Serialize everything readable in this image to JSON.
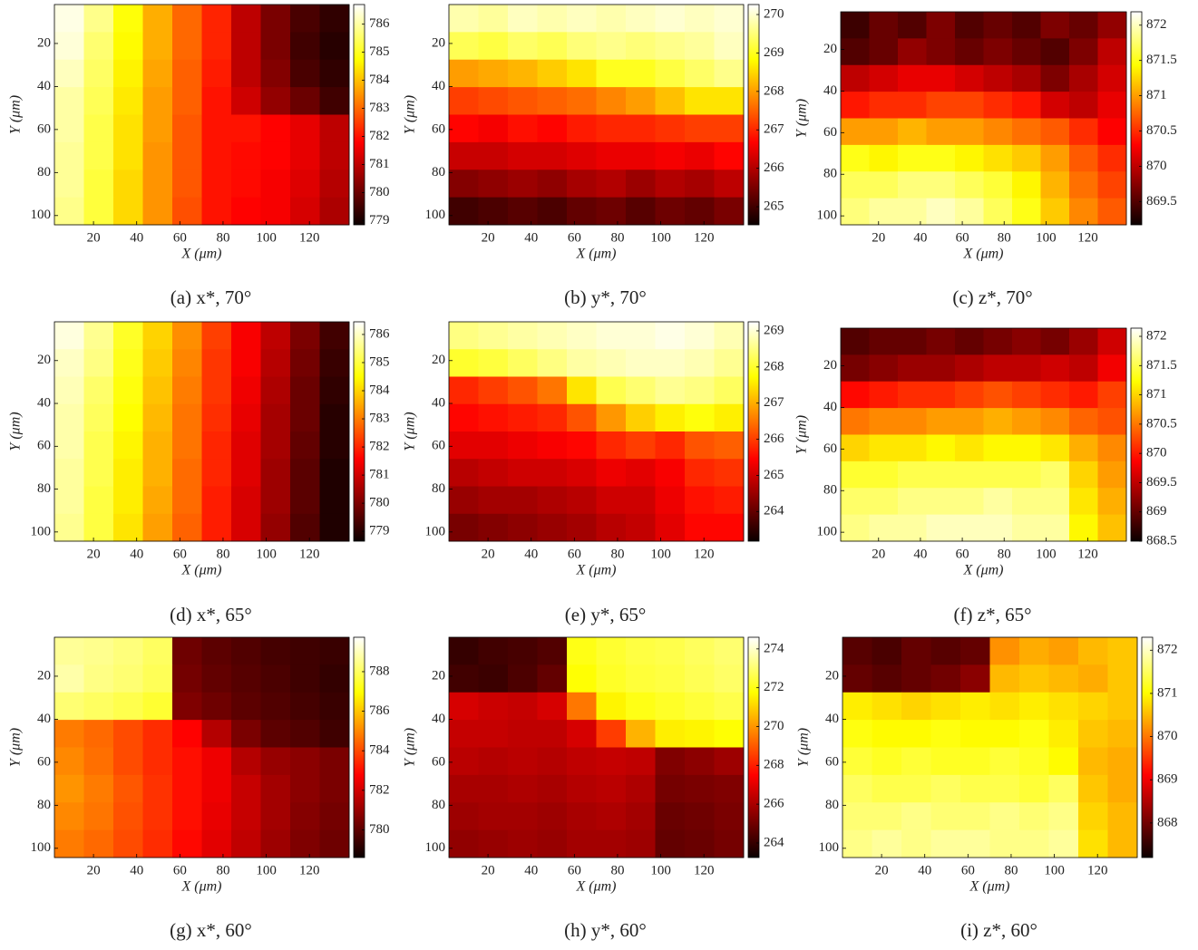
{
  "chart_data": [
    {
      "type": "heatmap",
      "caption": "(a) x*, 70°",
      "xlabel": "X (μm)",
      "ylabel": "Y (μm)",
      "colormap": "hot",
      "y_reversed": true,
      "xlim": [
        1.9,
        138.4
      ],
      "ylim": [
        1.9,
        104.3
      ],
      "xticks": [
        20,
        40,
        60,
        80,
        100,
        120
      ],
      "yticks": [
        20,
        40,
        60,
        80,
        100
      ],
      "clim": [
        778.85,
        786.7
      ],
      "cticks": [
        779,
        780,
        781,
        782,
        783,
        784,
        785,
        786
      ],
      "values": [
        [
          786.5,
          785.8,
          784.8,
          783.8,
          783.0,
          782.2,
          781.0,
          780.2,
          779.6,
          779.3
        ],
        [
          786.4,
          785.6,
          784.7,
          783.8,
          783.0,
          782.2,
          781.0,
          780.2,
          779.5,
          779.2
        ],
        [
          786.2,
          785.5,
          784.6,
          783.7,
          782.9,
          782.1,
          781.0,
          780.3,
          779.6,
          779.3
        ],
        [
          786.0,
          785.4,
          784.5,
          783.6,
          782.9,
          782.0,
          781.2,
          780.5,
          780.0,
          779.5
        ],
        [
          786.0,
          785.3,
          784.4,
          783.6,
          782.8,
          782.0,
          782.0,
          781.8,
          781.5,
          781.0
        ],
        [
          785.9,
          785.3,
          784.4,
          783.5,
          782.8,
          782.0,
          781.9,
          781.8,
          781.5,
          781.0
        ],
        [
          785.9,
          785.2,
          784.3,
          783.5,
          782.8,
          782.0,
          781.9,
          781.7,
          781.4,
          780.9
        ],
        [
          785.8,
          785.2,
          784.3,
          783.5,
          782.7,
          782.0,
          781.8,
          781.7,
          781.3,
          780.8
        ]
      ]
    },
    {
      "type": "heatmap",
      "caption": "(b) y*, 70°",
      "xlabel": "X (μm)",
      "ylabel": "Y (μm)",
      "colormap": "hot",
      "y_reversed": true,
      "xlim": [
        1.9,
        138.4
      ],
      "ylim": [
        1.9,
        104.3
      ],
      "xticks": [
        20,
        40,
        60,
        80,
        100,
        120
      ],
      "yticks": [
        20,
        40,
        60,
        80,
        100
      ],
      "clim": [
        264.53,
        270.26
      ],
      "cticks": [
        265,
        266,
        267,
        268,
        269,
        270
      ],
      "values": [
        [
          269.8,
          269.7,
          269.9,
          269.8,
          269.9,
          269.8,
          269.9,
          270.0,
          269.9,
          270.0
        ],
        [
          269.3,
          269.2,
          269.4,
          269.3,
          269.5,
          269.6,
          269.5,
          269.6,
          269.7,
          269.9
        ],
        [
          268.0,
          268.1,
          268.2,
          268.4,
          268.6,
          269.0,
          269.0,
          269.2,
          269.4,
          269.6
        ],
        [
          267.2,
          267.3,
          267.4,
          267.5,
          267.6,
          267.8,
          268.0,
          268.3,
          268.6,
          268.6
        ],
        [
          266.7,
          266.6,
          266.8,
          266.7,
          266.9,
          267.0,
          267.0,
          267.1,
          267.2,
          267.2
        ],
        [
          266.2,
          266.2,
          266.3,
          266.3,
          266.4,
          266.5,
          266.5,
          266.6,
          266.5,
          266.7
        ],
        [
          265.6,
          265.7,
          265.8,
          265.7,
          265.9,
          266.0,
          265.8,
          266.0,
          265.9,
          266.1
        ],
        [
          265.0,
          265.1,
          265.2,
          265.1,
          265.3,
          265.4,
          265.2,
          265.4,
          265.3,
          265.5
        ]
      ]
    },
    {
      "type": "heatmap",
      "caption": "(c) z*, 70°",
      "xlabel": "X (μm)",
      "ylabel": "Y (μm)",
      "colormap": "hot",
      "y_reversed": true,
      "xlim": [
        1.9,
        138.4
      ],
      "ylim": [
        1.9,
        104.3
      ],
      "xticks": [
        20,
        40,
        60,
        80,
        100,
        120
      ],
      "yticks": [
        20,
        40,
        60,
        80,
        100
      ],
      "clim": [
        869.17,
        872.19
      ],
      "cticks": [
        869.5,
        870,
        870.5,
        871,
        871.5,
        872
      ],
      "values": [
        [
          869.4,
          869.6,
          869.5,
          869.7,
          869.5,
          869.6,
          869.5,
          869.7,
          869.6,
          869.8
        ],
        [
          869.5,
          869.6,
          869.8,
          869.7,
          869.6,
          869.7,
          869.6,
          869.5,
          869.7,
          870.0
        ],
        [
          870.0,
          870.1,
          870.2,
          870.2,
          870.1,
          870.0,
          869.9,
          869.7,
          869.9,
          870.1
        ],
        [
          870.4,
          870.5,
          870.5,
          870.6,
          870.6,
          870.5,
          870.4,
          870.1,
          870.0,
          870.2
        ],
        [
          871.0,
          871.0,
          871.1,
          871.0,
          871.0,
          870.9,
          870.8,
          870.7,
          870.5,
          870.3
        ],
        [
          871.5,
          871.4,
          871.5,
          871.5,
          871.4,
          871.3,
          871.2,
          871.0,
          870.7,
          870.5
        ],
        [
          871.7,
          871.7,
          871.8,
          871.8,
          871.7,
          871.6,
          871.4,
          871.1,
          870.8,
          870.6
        ],
        [
          871.8,
          871.9,
          871.9,
          872.0,
          871.9,
          871.7,
          871.5,
          871.2,
          870.9,
          870.7
        ]
      ]
    },
    {
      "type": "heatmap",
      "caption": "(d) x*, 65°",
      "xlabel": "X (μm)",
      "ylabel": "Y (μm)",
      "colormap": "hot",
      "y_reversed": true,
      "xlim": [
        1.9,
        138.4
      ],
      "ylim": [
        1.9,
        104.3
      ],
      "xticks": [
        20,
        40,
        60,
        80,
        100,
        120
      ],
      "yticks": [
        20,
        40,
        60,
        80,
        100
      ],
      "clim": [
        778.65,
        786.45
      ],
      "cticks": [
        779,
        780,
        781,
        782,
        783,
        784,
        785,
        786
      ],
      "values": [
        [
          786.2,
          785.6,
          784.8,
          784.0,
          783.2,
          782.3,
          781.5,
          780.8,
          780.0,
          779.3
        ],
        [
          786.0,
          785.5,
          784.7,
          783.9,
          783.1,
          782.2,
          781.5,
          780.7,
          779.9,
          779.2
        ],
        [
          785.9,
          785.3,
          784.6,
          783.8,
          783.0,
          782.2,
          781.4,
          780.6,
          779.8,
          779.1
        ],
        [
          785.8,
          785.2,
          784.5,
          783.7,
          782.9,
          782.1,
          781.3,
          780.5,
          779.8,
          779.0
        ],
        [
          785.8,
          785.1,
          784.4,
          783.6,
          782.9,
          782.0,
          781.2,
          780.5,
          779.7,
          779.0
        ],
        [
          785.7,
          785.1,
          784.3,
          783.6,
          782.8,
          782.0,
          781.2,
          780.4,
          779.6,
          778.9
        ],
        [
          785.7,
          785.0,
          784.3,
          783.5,
          782.8,
          781.9,
          781.1,
          780.4,
          779.6,
          778.9
        ],
        [
          785.6,
          785.0,
          784.2,
          783.4,
          782.7,
          781.9,
          781.1,
          780.3,
          779.5,
          778.9
        ]
      ]
    },
    {
      "type": "heatmap",
      "caption": "(e) y*, 65°",
      "xlabel": "X (μm)",
      "ylabel": "Y (μm)",
      "colormap": "hot",
      "y_reversed": true,
      "xlim": [
        1.9,
        138.4
      ],
      "ylim": [
        1.9,
        104.3
      ],
      "xticks": [
        20,
        40,
        60,
        80,
        100,
        120
      ],
      "yticks": [
        20,
        40,
        60,
        80,
        100
      ],
      "clim": [
        263.18,
        269.25
      ],
      "cticks": [
        264,
        265,
        266,
        267,
        268,
        269
      ],
      "values": [
        [
          268.5,
          268.6,
          268.7,
          268.8,
          268.9,
          269.0,
          269.0,
          269.1,
          269.0,
          268.8
        ],
        [
          268.0,
          268.1,
          268.3,
          268.5,
          268.7,
          268.8,
          268.9,
          268.9,
          268.8,
          268.6
        ],
        [
          265.8,
          266.0,
          266.2,
          266.5,
          267.5,
          268.2,
          268.4,
          268.6,
          268.5,
          268.3
        ],
        [
          265.5,
          265.6,
          265.7,
          265.8,
          266.2,
          266.8,
          267.3,
          267.6,
          267.8,
          267.6
        ],
        [
          265.2,
          265.2,
          265.3,
          265.4,
          265.5,
          265.8,
          266.0,
          265.8,
          266.2,
          266.3
        ],
        [
          264.8,
          264.9,
          265.0,
          265.0,
          265.1,
          265.3,
          265.2,
          265.4,
          265.8,
          265.9
        ],
        [
          264.5,
          264.6,
          264.6,
          264.7,
          264.8,
          265.0,
          265.0,
          265.3,
          265.6,
          265.7
        ],
        [
          264.2,
          264.3,
          264.4,
          264.5,
          264.6,
          264.8,
          264.9,
          265.2,
          265.5,
          265.5
        ]
      ]
    },
    {
      "type": "heatmap",
      "caption": "(f) z*, 65°",
      "xlabel": "X (μm)",
      "ylabel": "Y (μm)",
      "colormap": "hot",
      "y_reversed": true,
      "xlim": [
        1.9,
        138.4
      ],
      "ylim": [
        1.9,
        104.3
      ],
      "xticks": [
        20,
        40,
        60,
        80,
        100,
        120
      ],
      "yticks": [
        20,
        40,
        60,
        80,
        100
      ],
      "clim": [
        868.5,
        872.14
      ],
      "cticks": [
        868.5,
        869,
        869.5,
        870,
        870.5,
        871,
        871.5,
        872
      ],
      "values": [
        [
          868.9,
          869.0,
          869.0,
          869.1,
          869.0,
          869.1,
          869.2,
          869.1,
          869.3,
          869.6
        ],
        [
          869.1,
          869.2,
          869.3,
          869.3,
          869.4,
          869.5,
          869.5,
          869.6,
          869.5,
          869.8
        ],
        [
          869.9,
          870.0,
          870.1,
          870.1,
          870.2,
          870.3,
          870.2,
          870.1,
          870.0,
          870.2
        ],
        [
          870.5,
          870.6,
          870.6,
          870.7,
          870.7,
          870.8,
          870.7,
          870.6,
          870.4,
          870.3
        ],
        [
          871.0,
          871.1,
          871.1,
          871.2,
          871.1,
          871.2,
          871.2,
          871.1,
          870.8,
          870.6
        ],
        [
          871.4,
          871.4,
          871.5,
          871.5,
          871.5,
          871.5,
          871.5,
          871.6,
          871.0,
          870.7
        ],
        [
          871.6,
          871.6,
          871.7,
          871.7,
          871.7,
          871.8,
          871.7,
          871.7,
          871.1,
          870.8
        ],
        [
          871.7,
          871.8,
          871.8,
          871.9,
          871.9,
          871.9,
          871.8,
          871.8,
          871.2,
          870.9
        ]
      ]
    },
    {
      "type": "heatmap",
      "caption": "(g) x*, 60°",
      "xlabel": "X (μm)",
      "ylabel": "Y (μm)",
      "colormap": "hot",
      "y_reversed": true,
      "xlim": [
        1.9,
        138.4
      ],
      "ylim": [
        1.9,
        104.3
      ],
      "xticks": [
        20,
        40,
        60,
        80,
        100,
        120
      ],
      "yticks": [
        20,
        40,
        60,
        80,
        100
      ],
      "clim": [
        778.6,
        789.74
      ],
      "cticks": [
        780,
        782,
        784,
        786,
        788
      ],
      "values": [
        [
          788.6,
          788.5,
          788.3,
          788.0,
          780.3,
          780.0,
          779.8,
          779.6,
          779.5,
          779.4
        ],
        [
          788.8,
          788.4,
          788.2,
          787.9,
          780.4,
          780.1,
          779.9,
          779.7,
          779.5,
          779.3
        ],
        [
          788.2,
          788.0,
          787.8,
          787.5,
          780.6,
          780.3,
          780.0,
          779.8,
          779.6,
          779.4
        ],
        [
          784.8,
          784.5,
          784.0,
          783.5,
          782.8,
          781.5,
          780.5,
          780.0,
          779.8,
          779.5
        ],
        [
          785.0,
          784.6,
          784.0,
          783.5,
          783.0,
          782.5,
          781.5,
          781.0,
          780.8,
          780.5
        ],
        [
          785.2,
          784.8,
          784.2,
          783.6,
          783.0,
          782.5,
          781.8,
          781.2,
          780.8,
          780.5
        ],
        [
          785.0,
          784.7,
          784.1,
          783.6,
          783.0,
          782.4,
          781.8,
          781.2,
          780.7,
          780.4
        ],
        [
          784.8,
          784.5,
          784.0,
          783.5,
          782.9,
          782.3,
          781.7,
          781.1,
          780.6,
          780.3
        ]
      ]
    },
    {
      "type": "heatmap",
      "caption": "(h) y*, 60°",
      "xlabel": "X (μm)",
      "ylabel": "Y (μm)",
      "colormap": "hot",
      "y_reversed": true,
      "xlim": [
        1.9,
        138.4
      ],
      "ylim": [
        1.9,
        104.3
      ],
      "xticks": [
        20,
        40,
        60,
        80,
        100,
        120
      ],
      "yticks": [
        20,
        40,
        60,
        80,
        100
      ],
      "clim": [
        263.25,
        274.6
      ],
      "cticks": [
        264,
        266,
        268,
        270,
        272,
        274
      ],
      "values": [
        [
          264.0,
          264.2,
          264.3,
          264.5,
          272.0,
          272.3,
          272.5,
          272.6,
          272.8,
          273.0
        ],
        [
          264.2,
          264.1,
          264.4,
          264.8,
          271.8,
          272.2,
          272.4,
          272.5,
          272.7,
          272.9
        ],
        [
          266.8,
          266.6,
          266.5,
          266.8,
          269.5,
          271.6,
          272.0,
          272.2,
          272.4,
          272.6
        ],
        [
          266.5,
          266.5,
          266.4,
          266.4,
          266.8,
          268.5,
          270.5,
          271.5,
          271.6,
          271.8
        ],
        [
          266.3,
          266.2,
          266.3,
          266.2,
          266.4,
          266.5,
          266.4,
          265.3,
          265.5,
          265.8
        ],
        [
          266.0,
          266.0,
          266.1,
          266.0,
          266.2,
          266.3,
          266.1,
          265.1,
          265.2,
          265.3
        ],
        [
          265.8,
          265.9,
          265.9,
          265.8,
          266.0,
          266.1,
          265.9,
          264.9,
          265.0,
          265.2
        ],
        [
          265.6,
          265.7,
          265.8,
          265.7,
          265.9,
          265.9,
          265.8,
          264.8,
          264.9,
          265.1
        ]
      ]
    },
    {
      "type": "heatmap",
      "caption": "(i) z*, 60°",
      "xlabel": "X (μm)",
      "ylabel": "Y (μm)",
      "colormap": "hot",
      "y_reversed": true,
      "xlim": [
        1.9,
        138.4
      ],
      "ylim": [
        1.9,
        104.3
      ],
      "xticks": [
        20,
        40,
        60,
        80,
        100,
        120
      ],
      "yticks": [
        20,
        40,
        60,
        80,
        100
      ],
      "clim": [
        867.2,
        872.3
      ],
      "cticks": [
        868,
        869,
        870,
        871,
        872
      ],
      "values": [
        [
          867.8,
          867.7,
          867.9,
          867.8,
          867.9,
          870.2,
          870.4,
          870.3,
          870.5,
          870.6
        ],
        [
          867.9,
          867.8,
          867.9,
          868.0,
          868.2,
          870.5,
          870.6,
          870.5,
          870.4,
          870.6
        ],
        [
          870.9,
          870.8,
          870.7,
          870.8,
          870.9,
          870.8,
          870.9,
          870.8,
          870.7,
          870.6
        ],
        [
          871.1,
          871.0,
          871.0,
          871.1,
          871.0,
          871.0,
          871.1,
          870.9,
          870.6,
          870.5
        ],
        [
          871.3,
          871.2,
          871.3,
          871.2,
          871.2,
          871.3,
          871.2,
          871.0,
          870.5,
          870.4
        ],
        [
          871.5,
          871.4,
          871.4,
          871.5,
          871.4,
          871.4,
          871.3,
          871.5,
          870.6,
          870.4
        ],
        [
          871.6,
          871.6,
          871.7,
          871.6,
          871.6,
          871.7,
          871.6,
          871.7,
          870.7,
          870.5
        ],
        [
          871.7,
          871.8,
          871.7,
          871.8,
          871.8,
          871.7,
          871.7,
          871.8,
          870.8,
          870.5
        ]
      ]
    }
  ]
}
